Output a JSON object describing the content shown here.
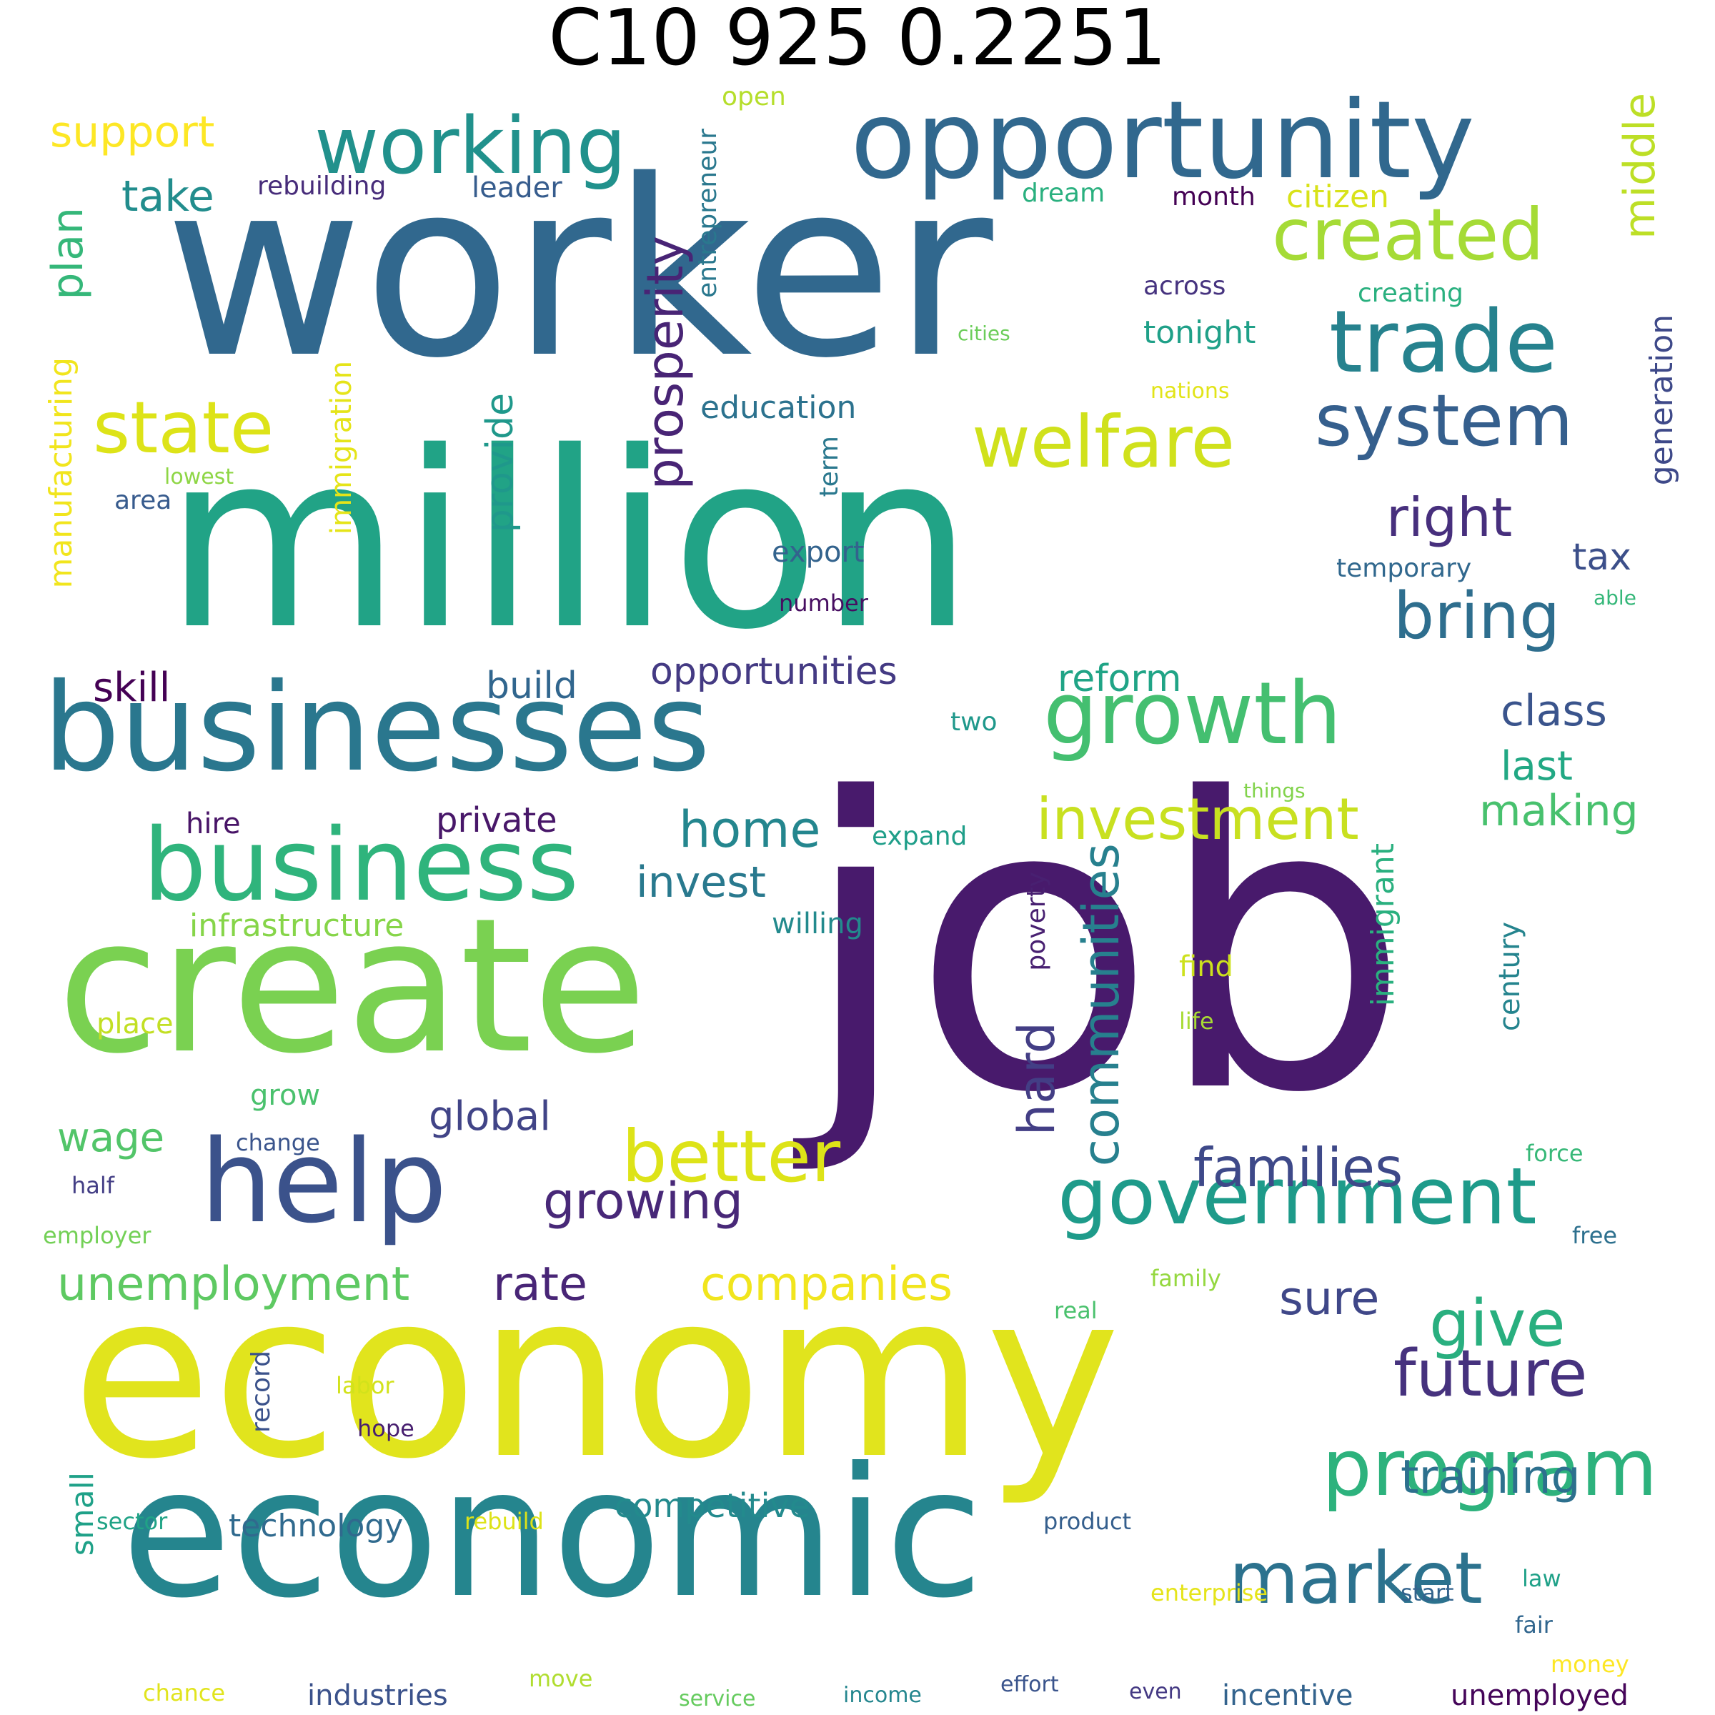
{
  "title": "C10 925 0.2251",
  "words": [
    {
      "text": "job",
      "color": "#481a6c",
      "size": 1.0
    },
    {
      "text": "worker",
      "color": "#31688e",
      "size": 0.97
    },
    {
      "text": "million",
      "color": "#21a386",
      "size": 0.93
    },
    {
      "text": "economy",
      "color": "#e1e41d",
      "size": 0.9
    },
    {
      "text": "create",
      "color": "#7ad151",
      "size": 0.72
    },
    {
      "text": "economic",
      "color": "#25858e",
      "size": 0.7
    },
    {
      "text": "businesses",
      "color": "#2a778e",
      "size": 0.47
    },
    {
      "text": "help",
      "color": "#3b528b",
      "size": 0.45
    },
    {
      "text": "opportunity",
      "color": "#31688e",
      "size": 0.42
    },
    {
      "text": "business",
      "color": "#2fb47c",
      "size": 0.4
    },
    {
      "text": "growth",
      "color": "#44bf70",
      "size": 0.34
    },
    {
      "text": "trade",
      "color": "#26828e",
      "size": 0.33
    },
    {
      "text": "working",
      "color": "#21918c",
      "size": 0.31
    },
    {
      "text": "program",
      "color": "#2db27d",
      "size": 0.3
    },
    {
      "text": "government",
      "color": "#1e9b8a",
      "size": 0.3
    },
    {
      "text": "system",
      "color": "#355f8d",
      "size": 0.28
    },
    {
      "text": "market",
      "color": "#2c728e",
      "size": 0.28
    },
    {
      "text": "created",
      "color": "#a5db36",
      "size": 0.27
    },
    {
      "text": "welfare",
      "color": "#d0e11c",
      "size": 0.27
    },
    {
      "text": "state",
      "color": "#dde318",
      "size": 0.27
    },
    {
      "text": "better",
      "color": "#dde318",
      "size": 0.27
    },
    {
      "text": "future",
      "color": "#46327e",
      "size": 0.26
    },
    {
      "text": "bring",
      "color": "#2e6e8e",
      "size": 0.24
    },
    {
      "text": "give",
      "color": "#29af7f",
      "size": 0.24
    },
    {
      "text": "investment",
      "color": "#c8e020",
      "size": 0.22
    },
    {
      "text": "right",
      "color": "#472f7d",
      "size": 0.21
    },
    {
      "text": "families",
      "color": "#3e4989",
      "size": 0.2
    },
    {
      "text": "prosperity",
      "color": "#482475",
      "size": 0.2
    },
    {
      "text": "growing",
      "color": "#482878",
      "size": 0.2
    },
    {
      "text": "communities",
      "color": "#27808e",
      "size": 0.2
    },
    {
      "text": "hard",
      "color": "#433e85",
      "size": 0.2
    },
    {
      "text": "home",
      "color": "#24868e",
      "size": 0.2
    },
    {
      "text": "companies",
      "color": "#f1e51d",
      "size": 0.19
    },
    {
      "text": "unemployment",
      "color": "#5ec962",
      "size": 0.19
    },
    {
      "text": "rate",
      "color": "#482576",
      "size": 0.19
    },
    {
      "text": "training",
      "color": "#2d708e",
      "size": 0.19
    },
    {
      "text": "sure",
      "color": "#3f4788",
      "size": 0.18
    },
    {
      "text": "middle",
      "color": "#bddf26",
      "size": 0.17
    },
    {
      "text": "plan",
      "color": "#35b779",
      "size": 0.17
    },
    {
      "text": "class",
      "color": "#3a548c",
      "size": 0.17
    },
    {
      "text": "take",
      "color": "#228d8d",
      "size": 0.17
    },
    {
      "text": "support",
      "color": "#fde725",
      "size": 0.17
    },
    {
      "text": "invest",
      "color": "#29798e",
      "size": 0.17
    },
    {
      "text": "making",
      "color": "#48c16e",
      "size": 0.17
    },
    {
      "text": "last",
      "color": "#22a884",
      "size": 0.16
    },
    {
      "text": "global",
      "color": "#414487",
      "size": 0.16
    },
    {
      "text": "wage",
      "color": "#52c569",
      "size": 0.16
    },
    {
      "text": "skill",
      "color": "#440154",
      "size": 0.16
    },
    {
      "text": "opportunities",
      "color": "#443a83",
      "size": 0.15
    },
    {
      "text": "reform",
      "color": "#20a486",
      "size": 0.15
    },
    {
      "text": "provide",
      "color": "#1f988b",
      "size": 0.15
    },
    {
      "text": "build",
      "color": "#31668e",
      "size": 0.15
    },
    {
      "text": "tax",
      "color": "#3c4f8a",
      "size": 0.15
    },
    {
      "text": "private",
      "color": "#481769",
      "size": 0.14
    },
    {
      "text": "competitive",
      "color": "#238a8d",
      "size": 0.13
    },
    {
      "text": "manufacturing",
      "color": "#f1e51d",
      "size": 0.12
    },
    {
      "text": "education",
      "color": "#2c728e",
      "size": 0.12
    },
    {
      "text": "citizen",
      "color": "#d8e219",
      "size": 0.12
    },
    {
      "text": "infrastructure",
      "color": "#86d549",
      "size": 0.12
    },
    {
      "text": "small",
      "color": "#1fa188",
      "size": 0.12
    },
    {
      "text": "generation",
      "color": "#3e4989",
      "size": 0.12
    },
    {
      "text": "tonight",
      "color": "#1fa088",
      "size": 0.12
    },
    {
      "text": "technology",
      "color": "#306a8e",
      "size": 0.12
    },
    {
      "text": "immigrant",
      "color": "#2ab07f",
      "size": 0.12
    },
    {
      "text": "leader",
      "color": "#365c8d",
      "size": 0.11
    },
    {
      "text": "industries",
      "color": "#3b528b",
      "size": 0.11
    },
    {
      "text": "incentive",
      "color": "#33638d",
      "size": 0.11
    },
    {
      "text": "unemployed",
      "color": "#450559",
      "size": 0.11
    },
    {
      "text": "hire",
      "color": "#481467",
      "size": 0.11
    },
    {
      "text": "export",
      "color": "#33638d",
      "size": 0.11
    },
    {
      "text": "willing",
      "color": "#238a8d",
      "size": 0.11
    },
    {
      "text": "century",
      "color": "#25848e",
      "size": 0.11
    },
    {
      "text": "find",
      "color": "#cde11d",
      "size": 0.11
    },
    {
      "text": "place",
      "color": "#c2df23",
      "size": 0.11
    },
    {
      "text": "grow",
      "color": "#4ac16d",
      "size": 0.11
    },
    {
      "text": "immigration",
      "color": "#e5e419",
      "size": 0.11
    },
    {
      "text": "rebuilding",
      "color": "#472c7a",
      "size": 0.1
    },
    {
      "text": "open",
      "color": "#b5de2b",
      "size": 0.1
    },
    {
      "text": "dream",
      "color": "#2ab07f",
      "size": 0.1
    },
    {
      "text": "month",
      "color": "#440154",
      "size": 0.1
    },
    {
      "text": "entrepreneur",
      "color": "#2a788e",
      "size": 0.1
    },
    {
      "text": "across",
      "color": "#46337f",
      "size": 0.1
    },
    {
      "text": "creating",
      "color": "#2ab07f",
      "size": 0.1
    },
    {
      "text": "expand",
      "color": "#1f9e89",
      "size": 0.1
    },
    {
      "text": "two",
      "color": "#1f988b",
      "size": 0.1
    },
    {
      "text": "term",
      "color": "#2a788e",
      "size": 0.1
    },
    {
      "text": "poverty",
      "color": "#482071",
      "size": 0.1
    },
    {
      "text": "temporary",
      "color": "#31688e",
      "size": 0.1
    },
    {
      "text": "record",
      "color": "#3b528b",
      "size": 0.1
    },
    {
      "text": "area",
      "color": "#375b8d",
      "size": 0.1
    },
    {
      "text": "number",
      "color": "#470e61",
      "size": 0.09
    },
    {
      "text": "life",
      "color": "#a8db34",
      "size": 0.09
    },
    {
      "text": "change",
      "color": "#3a548c",
      "size": 0.09
    },
    {
      "text": "half",
      "color": "#433e85",
      "size": 0.09
    },
    {
      "text": "employer",
      "color": "#73d056",
      "size": 0.09
    },
    {
      "text": "force",
      "color": "#37b878",
      "size": 0.09
    },
    {
      "text": "free",
      "color": "#2d708e",
      "size": 0.09
    },
    {
      "text": "family",
      "color": "#95d840",
      "size": 0.09
    },
    {
      "text": "real",
      "color": "#4ac16d",
      "size": 0.09
    },
    {
      "text": "labor",
      "color": "#d2e21b",
      "size": 0.09
    },
    {
      "text": "hope",
      "color": "#481f70",
      "size": 0.09
    },
    {
      "text": "product",
      "color": "#355f8d",
      "size": 0.09
    },
    {
      "text": "rebuild",
      "color": "#dde318",
      "size": 0.09
    },
    {
      "text": "sector",
      "color": "#20a386",
      "size": 0.09
    },
    {
      "text": "enterprise",
      "color": "#e5e419",
      "size": 0.09
    },
    {
      "text": "start",
      "color": "#33638d",
      "size": 0.08
    },
    {
      "text": "law",
      "color": "#1fa188",
      "size": 0.08
    },
    {
      "text": "fair",
      "color": "#31668e",
      "size": 0.08
    },
    {
      "text": "money",
      "color": "#fde725",
      "size": 0.08
    },
    {
      "text": "chance",
      "color": "#e1e41d",
      "size": 0.08
    },
    {
      "text": "move",
      "color": "#b0dd2f",
      "size": 0.08
    },
    {
      "text": "service",
      "color": "#65cb5e",
      "size": 0.08
    },
    {
      "text": "income",
      "color": "#24868e",
      "size": 0.08
    },
    {
      "text": "effort",
      "color": "#3a548c",
      "size": 0.08
    },
    {
      "text": "even",
      "color": "#443983",
      "size": 0.08
    },
    {
      "text": "nations",
      "color": "#e2e418",
      "size": 0.08
    },
    {
      "text": "lowest",
      "color": "#8ed645",
      "size": 0.08
    },
    {
      "text": "cities",
      "color": "#6ccd5a",
      "size": 0.07
    },
    {
      "text": "able",
      "color": "#35b779",
      "size": 0.07
    },
    {
      "text": "things",
      "color": "#82d34c",
      "size": 0.07
    }
  ]
}
